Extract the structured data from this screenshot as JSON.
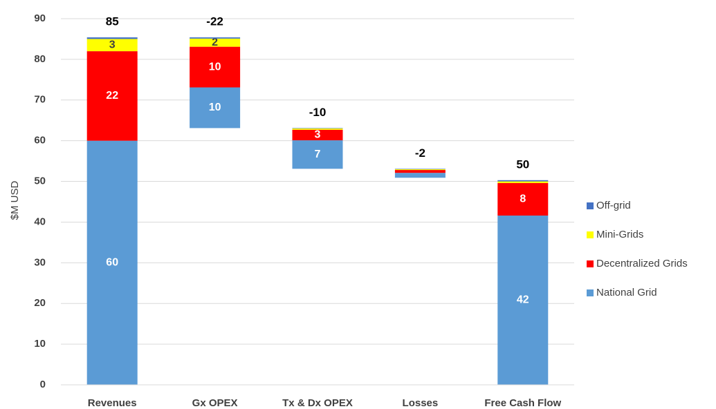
{
  "chart_data": {
    "type": "waterfall",
    "y_axis_label": "$M USD",
    "categories": [
      "Revenues",
      "Gx OPEX",
      "Tx & Dx OPEX",
      "Losses",
      "Free Cash Flow"
    ],
    "totals": [
      85,
      -22,
      -10,
      -2,
      50
    ],
    "series": [
      {
        "name": "National Grid",
        "color": "#5b9bd5",
        "values": [
          60,
          10,
          7,
          1.2,
          41.6
        ],
        "value_labels": [
          "60",
          "10",
          "7",
          null,
          "42"
        ]
      },
      {
        "name": "Decentralized Grids",
        "color": "#ff0000",
        "values": [
          22,
          10,
          2.6,
          0.7,
          8
        ],
        "value_labels": [
          "22",
          "10",
          "3",
          null,
          "8"
        ]
      },
      {
        "name": "Mini-Grids",
        "color": "#ffff00",
        "values": [
          3,
          2,
          0.3,
          0.2,
          0.4
        ],
        "value_labels": [
          "3",
          "2",
          null,
          null,
          null
        ]
      },
      {
        "name": "Off-grid",
        "color": "#4472c4",
        "values": [
          0.4,
          0.3,
          0.1,
          0.1,
          0.3
        ],
        "value_labels": [
          null,
          null,
          null,
          null,
          null
        ]
      }
    ],
    "ylim": [
      0,
      90
    ],
    "yticks": [
      0,
      10,
      20,
      30,
      40,
      50,
      60,
      70,
      80,
      90
    ],
    "grid": true
  }
}
